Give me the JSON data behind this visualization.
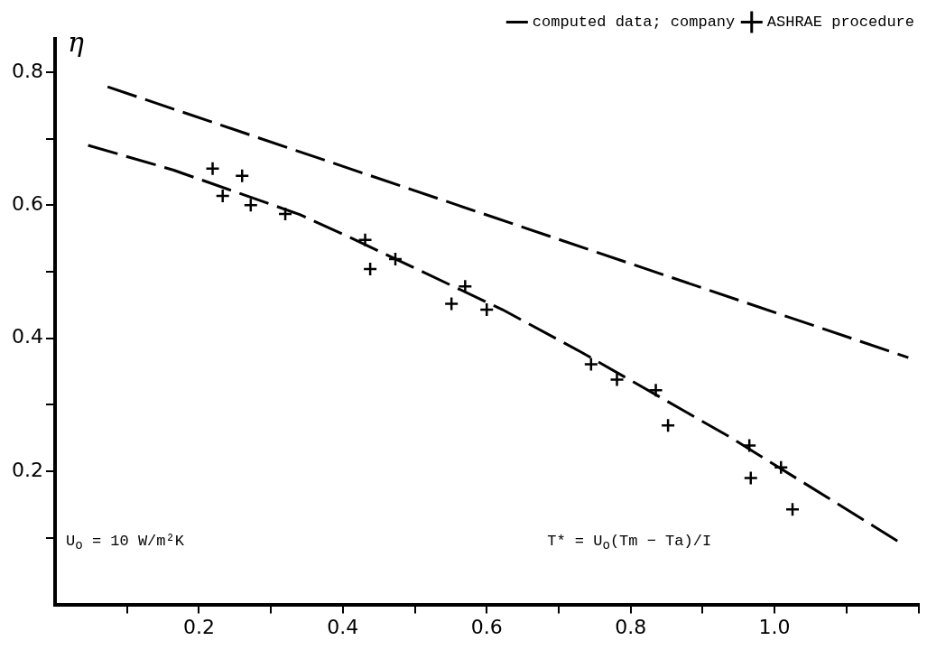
{
  "chart_data": {
    "type": "scatter",
    "ylabel": "η",
    "xlim": [
      0,
      1.2
    ],
    "ylim": [
      0,
      0.85
    ],
    "xticks": [
      {
        "value": 0.1,
        "label": null
      },
      0.2,
      {
        "value": 0.3,
        "label": null
      },
      0.4,
      {
        "value": 0.5,
        "label": null
      },
      0.6,
      {
        "value": 0.7,
        "label": null
      },
      0.8,
      {
        "value": 0.9,
        "label": null
      },
      {
        "value": 1.0,
        "label": "1.0"
      },
      {
        "value": 1.1,
        "label": null
      },
      {
        "value": 1.2,
        "label": null
      }
    ],
    "yticks": [
      {
        "value": 0.1,
        "label": null
      },
      0.2,
      {
        "value": 0.3,
        "label": null
      },
      0.4,
      {
        "value": 0.5,
        "label": null
      },
      0.6,
      {
        "value": 0.7,
        "label": null
      },
      0.8
    ],
    "grid": false,
    "legend": "top right",
    "series": [
      {
        "type": "line",
        "name": "computed data; company",
        "color": "#000000",
        "line_style": "dashed",
        "marker": "none",
        "x": [
          0.073,
          1.186
        ],
        "values": [
          0.778,
          0.371
        ]
      },
      {
        "type": "line",
        "color": "#000000",
        "line_style": "dashed",
        "marker": "none",
        "x": [
          0.046,
          0.164,
          0.34,
          0.411,
          0.622,
          0.73,
          0.939,
          1.173
        ],
        "values": [
          0.69,
          0.653,
          0.586,
          0.551,
          0.443,
          0.38,
          0.251,
          0.094
        ]
      },
      {
        "type": "scatter",
        "name": "ASHRAE procedure",
        "color": "#000000",
        "marker": "cross",
        "x": [
          0.219,
          0.26,
          0.233,
          0.272,
          0.32,
          0.431,
          0.438,
          0.473,
          0.57,
          0.551,
          0.6,
          0.745,
          0.781,
          0.835,
          0.852,
          0.965,
          0.967,
          1.009,
          1.025
        ],
        "values": [
          0.655,
          0.644,
          0.614,
          0.6,
          0.587,
          0.548,
          0.504,
          0.519,
          0.478,
          0.452,
          0.443,
          0.361,
          0.338,
          0.322,
          0.269,
          0.239,
          0.19,
          0.206,
          0.143
        ]
      }
    ],
    "annotations": [
      "U$_{o}$ = 10 W/m²K",
      "T* = U$_{o}$(Tm − Ta)/I"
    ]
  }
}
